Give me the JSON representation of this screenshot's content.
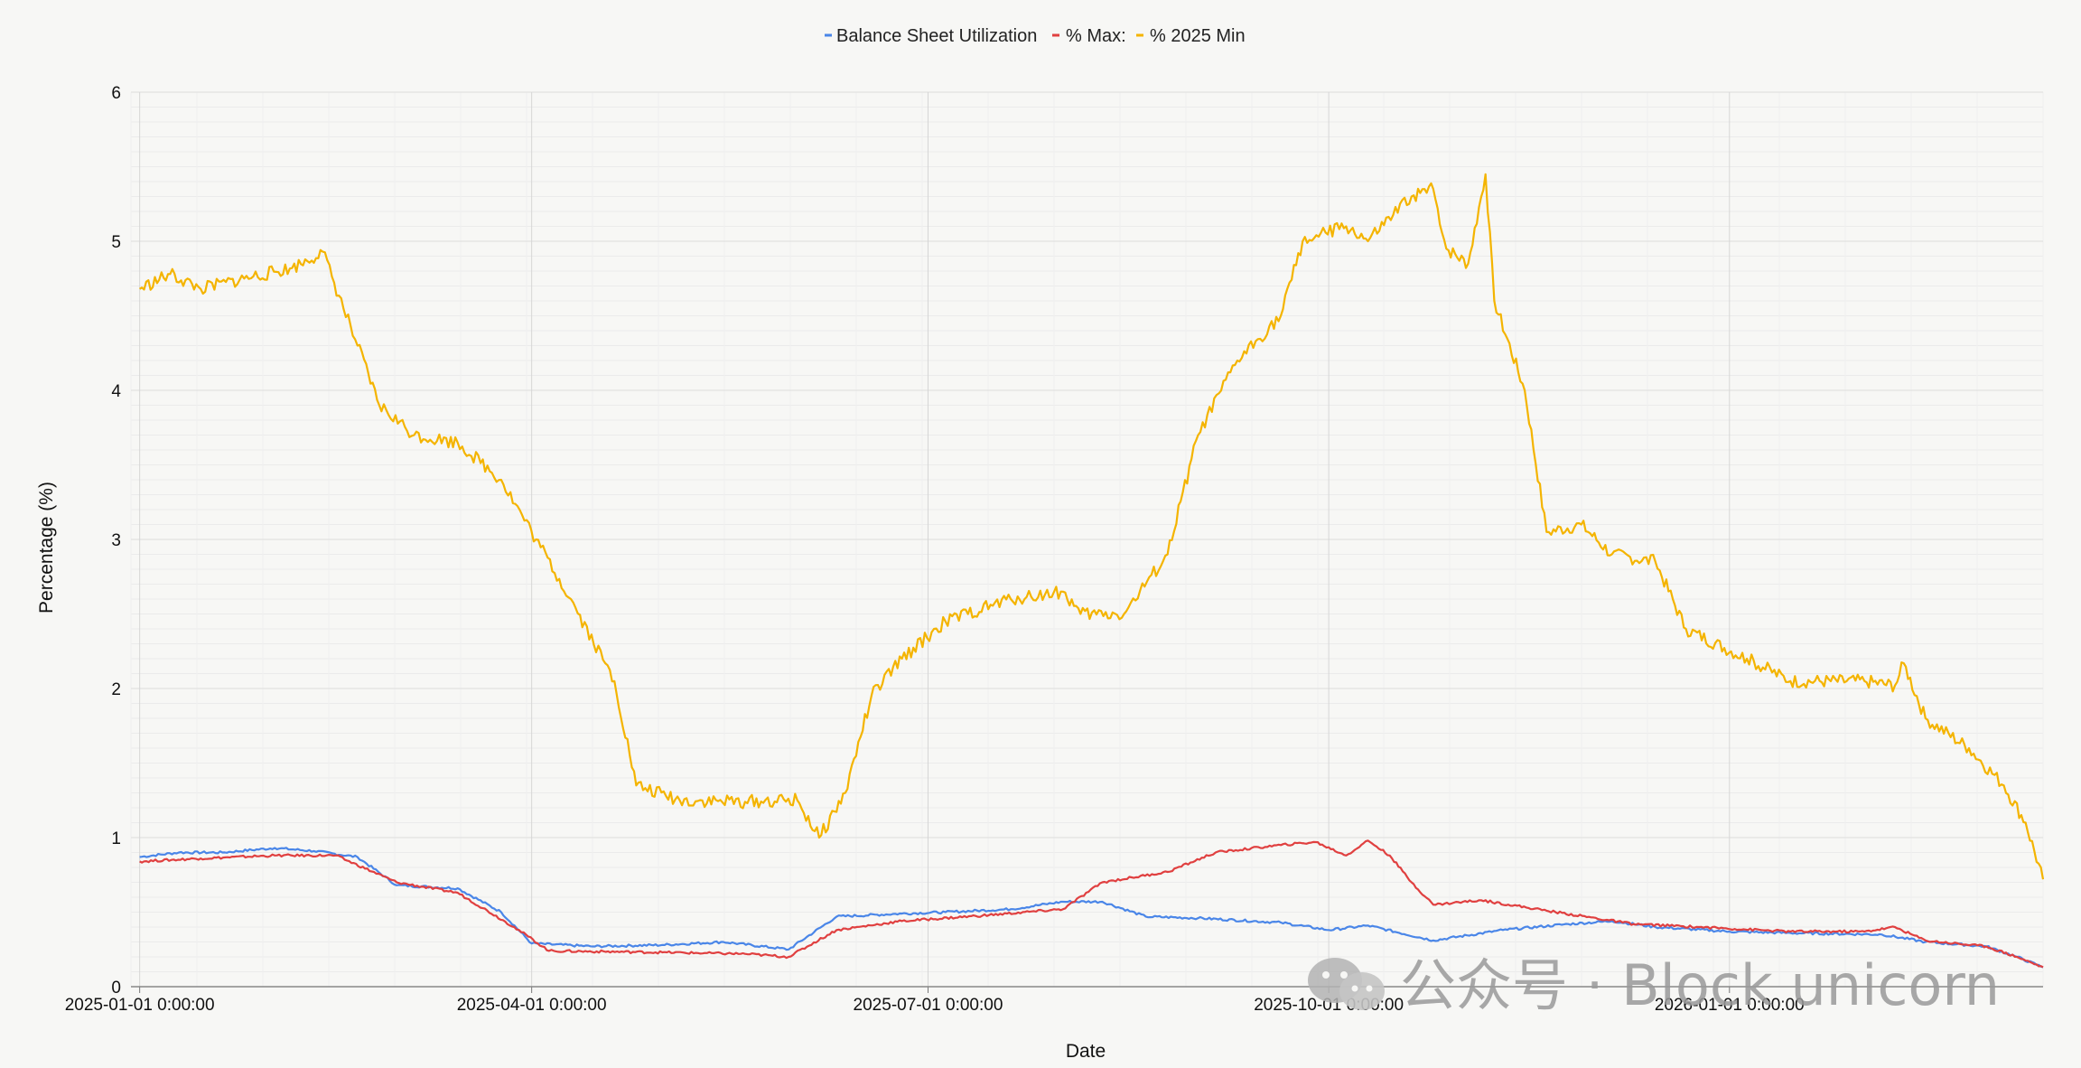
{
  "chart_data": {
    "type": "line",
    "title": "",
    "xlabel": "Date",
    "ylabel": "Percentage (%)",
    "ylim": [
      0,
      6
    ],
    "yticks": [
      "0",
      "1",
      "2",
      "3",
      "4",
      "5",
      "6"
    ],
    "xticks": [
      {
        "date": "2025-01-01",
        "label": "2025-01-01 0:00:00"
      },
      {
        "date": "2025-04-01",
        "label": "2025-04-01 0:00:00"
      },
      {
        "date": "2025-07-01",
        "label": "2025-07-01 0:00:00"
      },
      {
        "date": "2025-10-01",
        "label": "2025-10-01 0:00:00"
      },
      {
        "date": "2026-01-01",
        "label": "2026-01-01 0:00:00"
      }
    ],
    "xlim": [
      "2024-12-30",
      "2026-03-14"
    ],
    "grid": true,
    "legend_position": "top-center",
    "series": [
      {
        "name": "Balance Sheet Utilization",
        "color": "#4a86e8",
        "points": [
          [
            "2025-01-01",
            0.87
          ],
          [
            "2025-01-10",
            0.9
          ],
          [
            "2025-01-20",
            0.9
          ],
          [
            "2025-02-01",
            0.93
          ],
          [
            "2025-02-10",
            0.91
          ],
          [
            "2025-02-20",
            0.87
          ],
          [
            "2025-03-01",
            0.68
          ],
          [
            "2025-03-15",
            0.66
          ],
          [
            "2025-03-25",
            0.5
          ],
          [
            "2025-04-01",
            0.29
          ],
          [
            "2025-04-15",
            0.27
          ],
          [
            "2025-05-01",
            0.28
          ],
          [
            "2025-05-15",
            0.3
          ],
          [
            "2025-05-30",
            0.25
          ],
          [
            "2025-06-10",
            0.47
          ],
          [
            "2025-06-25",
            0.49
          ],
          [
            "2025-07-05",
            0.5
          ],
          [
            "2025-07-20",
            0.52
          ],
          [
            "2025-08-01",
            0.57
          ],
          [
            "2025-08-10",
            0.57
          ],
          [
            "2025-08-20",
            0.47
          ],
          [
            "2025-09-01",
            0.46
          ],
          [
            "2025-09-20",
            0.43
          ],
          [
            "2025-10-01",
            0.38
          ],
          [
            "2025-10-10",
            0.41
          ],
          [
            "2025-10-25",
            0.31
          ],
          [
            "2025-11-10",
            0.38
          ],
          [
            "2025-11-25",
            0.42
          ],
          [
            "2025-12-05",
            0.44
          ],
          [
            "2025-12-15",
            0.4
          ],
          [
            "2026-01-01",
            0.37
          ],
          [
            "2026-01-15",
            0.36
          ],
          [
            "2026-02-05",
            0.35
          ],
          [
            "2026-02-15",
            0.3
          ],
          [
            "2026-03-01",
            0.27
          ],
          [
            "2026-03-08",
            0.2
          ],
          [
            "2026-03-14",
            0.13
          ]
        ]
      },
      {
        "name": "% Max:",
        "color": "#e04040",
        "points": [
          [
            "2025-01-01",
            0.84
          ],
          [
            "2025-01-15",
            0.86
          ],
          [
            "2025-02-01",
            0.88
          ],
          [
            "2025-02-15",
            0.88
          ],
          [
            "2025-03-01",
            0.7
          ],
          [
            "2025-03-15",
            0.63
          ],
          [
            "2025-03-28",
            0.4
          ],
          [
            "2025-04-05",
            0.24
          ],
          [
            "2025-05-01",
            0.23
          ],
          [
            "2025-05-20",
            0.22
          ],
          [
            "2025-05-30",
            0.2
          ],
          [
            "2025-06-10",
            0.38
          ],
          [
            "2025-06-25",
            0.44
          ],
          [
            "2025-07-15",
            0.48
          ],
          [
            "2025-08-01",
            0.52
          ],
          [
            "2025-08-10",
            0.7
          ],
          [
            "2025-08-25",
            0.77
          ],
          [
            "2025-09-05",
            0.9
          ],
          [
            "2025-09-20",
            0.95
          ],
          [
            "2025-09-28",
            0.97
          ],
          [
            "2025-10-05",
            0.88
          ],
          [
            "2025-10-10",
            0.98
          ],
          [
            "2025-10-15",
            0.88
          ],
          [
            "2025-10-20",
            0.7
          ],
          [
            "2025-10-25",
            0.55
          ],
          [
            "2025-11-05",
            0.58
          ],
          [
            "2025-11-20",
            0.51
          ],
          [
            "2025-12-10",
            0.42
          ],
          [
            "2025-12-25",
            0.4
          ],
          [
            "2026-01-15",
            0.37
          ],
          [
            "2026-02-01",
            0.37
          ],
          [
            "2026-02-08",
            0.4
          ],
          [
            "2026-02-15",
            0.31
          ],
          [
            "2026-03-01",
            0.27
          ],
          [
            "2026-03-08",
            0.2
          ],
          [
            "2026-03-14",
            0.13
          ]
        ]
      },
      {
        "name": "% 2025 Min",
        "color": "#f4b400",
        "points": [
          [
            "2025-01-01",
            4.68
          ],
          [
            "2025-01-08",
            4.78
          ],
          [
            "2025-01-15",
            4.68
          ],
          [
            "2025-01-25",
            4.75
          ],
          [
            "2025-02-05",
            4.82
          ],
          [
            "2025-02-12",
            4.93
          ],
          [
            "2025-02-20",
            4.3
          ],
          [
            "2025-02-25",
            3.9
          ],
          [
            "2025-03-05",
            3.7
          ],
          [
            "2025-03-15",
            3.65
          ],
          [
            "2025-03-25",
            3.4
          ],
          [
            "2025-04-02",
            3.0
          ],
          [
            "2025-04-10",
            2.6
          ],
          [
            "2025-04-20",
            2.05
          ],
          [
            "2025-04-25",
            1.35
          ],
          [
            "2025-05-05",
            1.25
          ],
          [
            "2025-05-20",
            1.24
          ],
          [
            "2025-06-01",
            1.25
          ],
          [
            "2025-06-06",
            1.0
          ],
          [
            "2025-06-12",
            1.3
          ],
          [
            "2025-06-18",
            1.95
          ],
          [
            "2025-06-25",
            2.2
          ],
          [
            "2025-07-05",
            2.45
          ],
          [
            "2025-07-20",
            2.6
          ],
          [
            "2025-08-01",
            2.65
          ],
          [
            "2025-08-05",
            2.5
          ],
          [
            "2025-08-15",
            2.5
          ],
          [
            "2025-08-25",
            2.9
          ],
          [
            "2025-09-01",
            3.7
          ],
          [
            "2025-09-10",
            4.2
          ],
          [
            "2025-09-20",
            4.5
          ],
          [
            "2025-09-25",
            5.0
          ],
          [
            "2025-10-05",
            5.1
          ],
          [
            "2025-10-10",
            5.0
          ],
          [
            "2025-10-20",
            5.3
          ],
          [
            "2025-10-25",
            5.35
          ],
          [
            "2025-10-28",
            4.95
          ],
          [
            "2025-11-02",
            4.85
          ],
          [
            "2025-11-06",
            5.45
          ],
          [
            "2025-11-08",
            4.6
          ],
          [
            "2025-11-15",
            4.0
          ],
          [
            "2025-11-20",
            3.05
          ],
          [
            "2025-11-28",
            3.1
          ],
          [
            "2025-12-05",
            2.9
          ],
          [
            "2025-12-15",
            2.85
          ],
          [
            "2025-12-22",
            2.4
          ],
          [
            "2026-01-05",
            2.2
          ],
          [
            "2026-01-15",
            2.05
          ],
          [
            "2026-02-01",
            2.05
          ],
          [
            "2026-02-08",
            2.02
          ],
          [
            "2026-02-10",
            2.17
          ],
          [
            "2026-02-15",
            1.8
          ],
          [
            "2026-02-25",
            1.6
          ],
          [
            "2026-03-05",
            1.35
          ],
          [
            "2026-03-10",
            1.1
          ],
          [
            "2026-03-14",
            0.72
          ]
        ]
      }
    ]
  },
  "watermark": {
    "icon": "wechat-icon",
    "text": "公众号 · Block unicorn"
  }
}
